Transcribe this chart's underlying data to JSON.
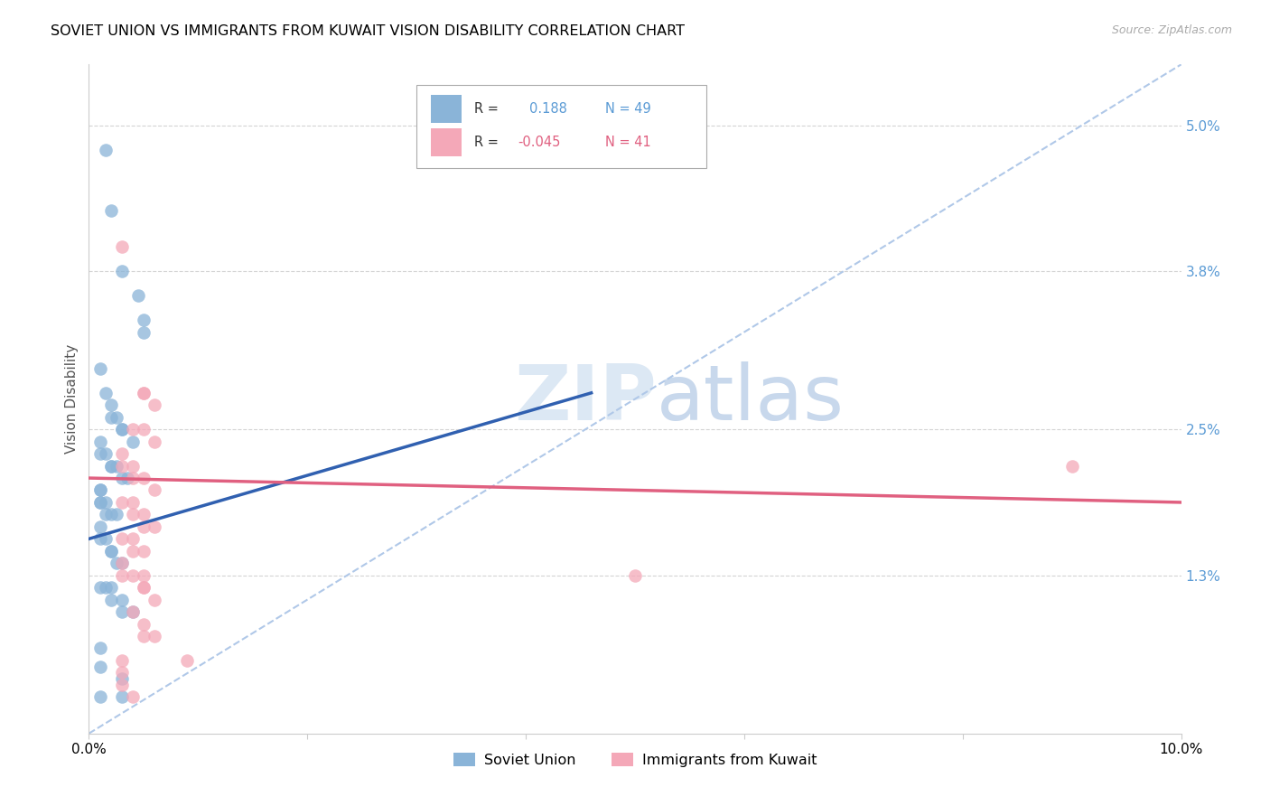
{
  "title": "SOVIET UNION VS IMMIGRANTS FROM KUWAIT VISION DISABILITY CORRELATION CHART",
  "source": "Source: ZipAtlas.com",
  "ylabel": "Vision Disability",
  "xlim": [
    0.0,
    0.1
  ],
  "ylim": [
    0.0,
    0.055
  ],
  "xticks": [
    0.0,
    0.02,
    0.04,
    0.06,
    0.08,
    0.1
  ],
  "xticklabels": [
    "0.0%",
    "",
    "",
    "",
    "",
    "10.0%"
  ],
  "yticks": [
    0.013,
    0.025,
    0.038,
    0.05
  ],
  "yticklabels": [
    "1.3%",
    "2.5%",
    "3.8%",
    "5.0%"
  ],
  "blue_R": 0.188,
  "blue_N": 49,
  "pink_R": -0.045,
  "pink_N": 41,
  "blue_color": "#8ab4d8",
  "pink_color": "#f4a8b8",
  "blue_line_color": "#3060b0",
  "pink_line_color": "#e06080",
  "dashed_line_color": "#b0c8e8",
  "blue_x": [
    0.0015,
    0.002,
    0.003,
    0.0045,
    0.005,
    0.005,
    0.001,
    0.0015,
    0.002,
    0.002,
    0.0025,
    0.003,
    0.003,
    0.004,
    0.001,
    0.001,
    0.0015,
    0.002,
    0.002,
    0.0025,
    0.003,
    0.0035,
    0.001,
    0.001,
    0.001,
    0.001,
    0.0015,
    0.0015,
    0.002,
    0.0025,
    0.001,
    0.001,
    0.0015,
    0.002,
    0.002,
    0.0025,
    0.003,
    0.001,
    0.0015,
    0.002,
    0.002,
    0.003,
    0.003,
    0.004,
    0.001,
    0.003,
    0.001,
    0.003,
    0.001
  ],
  "blue_y": [
    0.048,
    0.043,
    0.038,
    0.036,
    0.034,
    0.033,
    0.03,
    0.028,
    0.027,
    0.026,
    0.026,
    0.025,
    0.025,
    0.024,
    0.024,
    0.023,
    0.023,
    0.022,
    0.022,
    0.022,
    0.021,
    0.021,
    0.02,
    0.02,
    0.019,
    0.019,
    0.019,
    0.018,
    0.018,
    0.018,
    0.017,
    0.016,
    0.016,
    0.015,
    0.015,
    0.014,
    0.014,
    0.012,
    0.012,
    0.012,
    0.011,
    0.011,
    0.01,
    0.01,
    0.0055,
    0.0045,
    0.003,
    0.003,
    0.007
  ],
  "pink_x": [
    0.003,
    0.005,
    0.005,
    0.006,
    0.004,
    0.005,
    0.006,
    0.003,
    0.003,
    0.004,
    0.004,
    0.005,
    0.006,
    0.003,
    0.004,
    0.004,
    0.005,
    0.005,
    0.006,
    0.003,
    0.004,
    0.004,
    0.005,
    0.003,
    0.003,
    0.004,
    0.005,
    0.005,
    0.006,
    0.004,
    0.005,
    0.005,
    0.006,
    0.003,
    0.005,
    0.009,
    0.09,
    0.05,
    0.003,
    0.003,
    0.004
  ],
  "pink_y": [
    0.04,
    0.028,
    0.028,
    0.027,
    0.025,
    0.025,
    0.024,
    0.023,
    0.022,
    0.022,
    0.021,
    0.021,
    0.02,
    0.019,
    0.019,
    0.018,
    0.018,
    0.017,
    0.017,
    0.016,
    0.016,
    0.015,
    0.015,
    0.014,
    0.013,
    0.013,
    0.012,
    0.012,
    0.011,
    0.01,
    0.009,
    0.008,
    0.008,
    0.006,
    0.013,
    0.006,
    0.022,
    0.013,
    0.005,
    0.004,
    0.003
  ],
  "blue_line_x": [
    0.0,
    0.046
  ],
  "blue_line_y": [
    0.016,
    0.028
  ],
  "pink_line_x": [
    0.0,
    0.1
  ],
  "pink_line_y": [
    0.021,
    0.019
  ],
  "dash_line_x": [
    0.0,
    0.1
  ],
  "dash_line_y": [
    0.0,
    0.055
  ]
}
